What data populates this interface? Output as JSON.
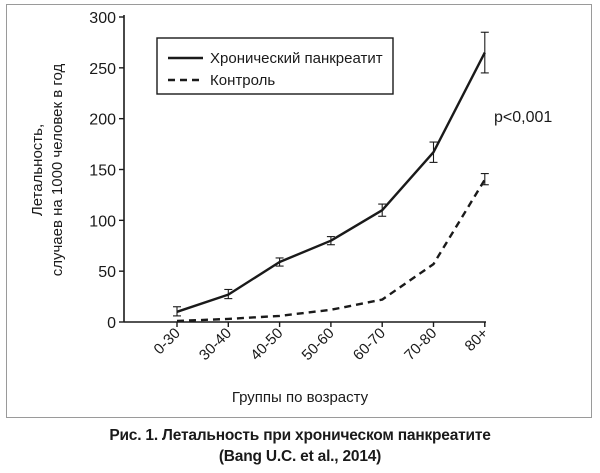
{
  "caption": {
    "line1": "Рис. 1. Летальность при хроническом панкреатите",
    "line2": "(Bang U.C. et al., 2014)"
  },
  "chart_data": {
    "type": "line",
    "title": "",
    "xlabel": "Группы по возрасту",
    "ylabel_line1": "Летальность,",
    "ylabel_line2": "случаев на 1000 человек в год",
    "categories": [
      "0-30",
      "30-40",
      "40-50",
      "50-60",
      "60-70",
      "70-80",
      "80+"
    ],
    "ylim": [
      0,
      300
    ],
    "yticks": [
      0,
      50,
      100,
      150,
      200,
      250,
      300
    ],
    "grid": false,
    "legend_position": "top-left",
    "annotation": "p<0,001",
    "series": [
      {
        "name": "Хронический панкреатит",
        "style": "solid",
        "values": [
          10,
          27,
          59,
          80,
          110,
          167,
          265
        ],
        "error_low": [
          6,
          23,
          55,
          76,
          104,
          157,
          245
        ],
        "error_high": [
          15,
          32,
          63,
          84,
          116,
          177,
          285
        ]
      },
      {
        "name": "Контроль",
        "style": "dashed",
        "values": [
          1,
          3,
          6,
          12,
          22,
          57,
          140
        ],
        "error_low": [
          null,
          null,
          null,
          null,
          null,
          null,
          135
        ],
        "error_high": [
          null,
          null,
          null,
          null,
          null,
          null,
          146
        ]
      }
    ],
    "colors": {
      "line": "#1a1a1a",
      "axis": "#1a1a1a",
      "frame": "#9a9a9a"
    }
  }
}
